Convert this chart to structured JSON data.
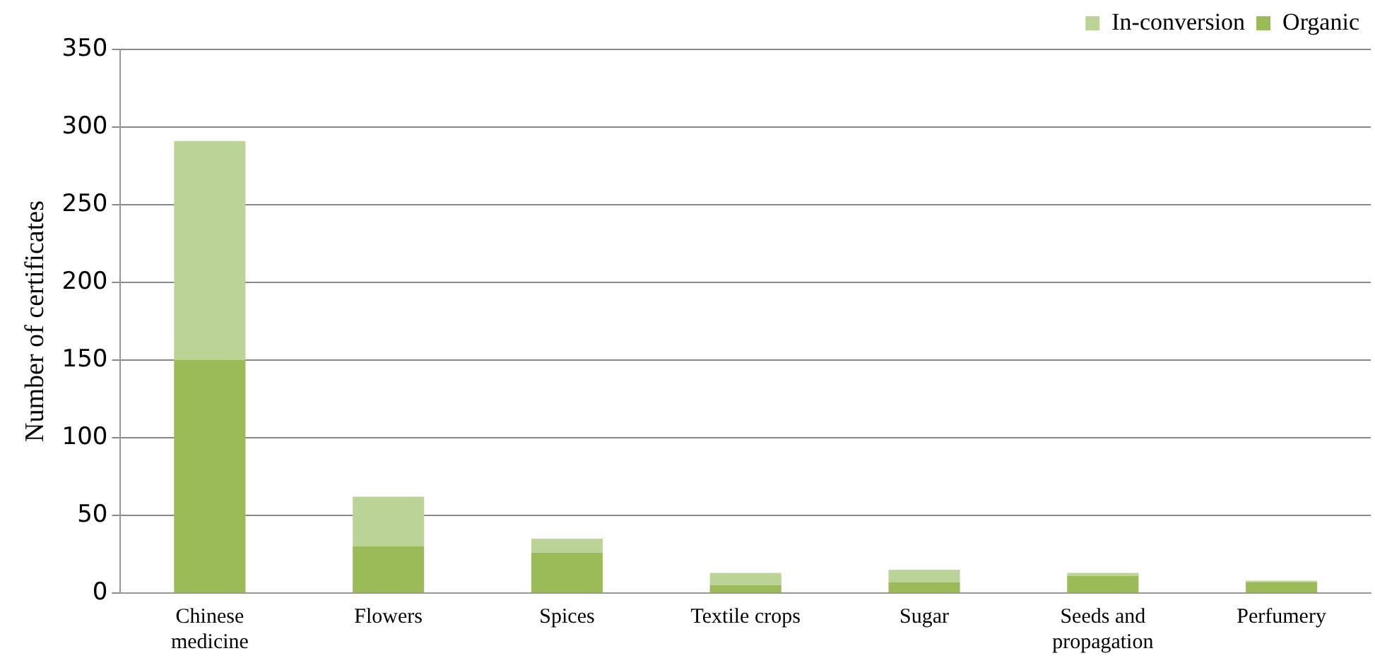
{
  "chart_data": {
    "type": "bar",
    "stacked": true,
    "ylabel": "Number of certificates",
    "categories": [
      "Chinese medicine",
      "Flowers",
      "Spices",
      "Textile crops",
      "Sugar",
      "Seeds and propagation",
      "Perfumery"
    ],
    "series": [
      {
        "name": "Organic",
        "color": "#9bbb59",
        "values": [
          150,
          30,
          26,
          5,
          7,
          11,
          7
        ]
      },
      {
        "name": "In-conversion",
        "color": "#bcd397",
        "values": [
          141,
          32,
          9,
          8,
          8,
          2,
          1
        ]
      }
    ],
    "ylim": [
      0,
      350
    ],
    "yticks": [
      0,
      50,
      100,
      150,
      200,
      250,
      300,
      350
    ],
    "grid": "y",
    "legend": "top right"
  }
}
